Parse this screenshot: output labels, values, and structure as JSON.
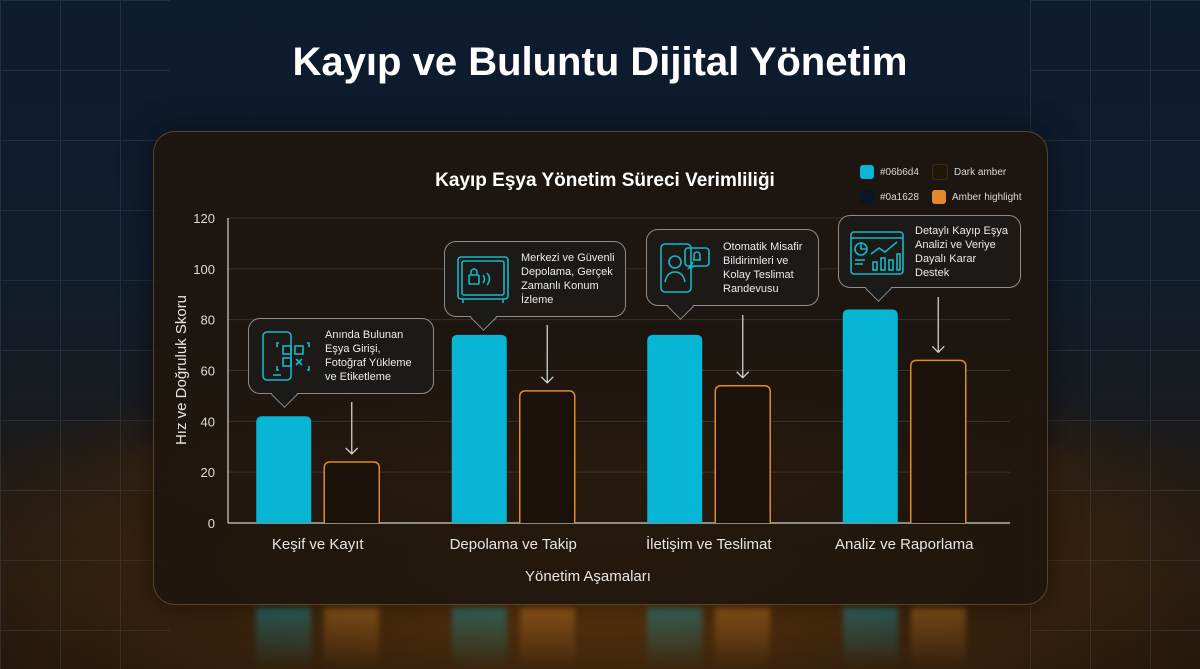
{
  "page_title": "Kayıp ve Buluntu Dijital Yönetim",
  "colors": {
    "cyan": "#06b6d4",
    "navy": "#0a1628",
    "dark_amber": "#1f1609",
    "amber": "#e08a2c"
  },
  "chart_data": {
    "type": "bar",
    "title": "Kayıp Eşya Yönetim Süreci Verimliliği",
    "xlabel": "Yönetim Aşamaları",
    "ylabel": "Hız ve Doğruluk Skoru",
    "ylim": [
      0,
      120
    ],
    "yticks": [
      "0",
      "20",
      "40",
      "60",
      "80",
      "100",
      "120"
    ],
    "grid": true,
    "legend_position": "top-right",
    "legend": [
      {
        "label": "#06b6d4",
        "color": "#06b6d4"
      },
      {
        "label": "Dark amber",
        "color": "#1f1609"
      },
      {
        "label": "#0a1628",
        "color": "#0a1628"
      },
      {
        "label": "Amber highlight",
        "color": "#e08a2c"
      }
    ],
    "categories": [
      "Keşif ve Kayıt",
      "Depolama ve Takip",
      "İletişim ve Teslimat",
      "Analiz ve Raporlama"
    ],
    "series": [
      {
        "color": "#06b6d4",
        "values": [
          42,
          74,
          74,
          84
        ]
      },
      {
        "color": "#e08a2c",
        "values": [
          24,
          52,
          54,
          64
        ]
      }
    ],
    "annotations": [
      {
        "text": "Anında Bulunan Eşya Girişi, Fotoğraf Yükleme ve Etiketleme",
        "icon": "phone-qr-icon"
      },
      {
        "text": "Merkezi ve Güvenli Depolama, Gerçek Zamanlı Konum İzleme",
        "icon": "safe-lock-icon"
      },
      {
        "text": "Otomatik Misafir Bildirimleri ve Kolay Teslimat Randevusu",
        "icon": "phone-bell-icon"
      },
      {
        "text": "Detaylı Kayıp Eşya Analizi ve Veriye Dayalı Karar Destek",
        "icon": "analytics-dashboard-icon"
      }
    ]
  }
}
